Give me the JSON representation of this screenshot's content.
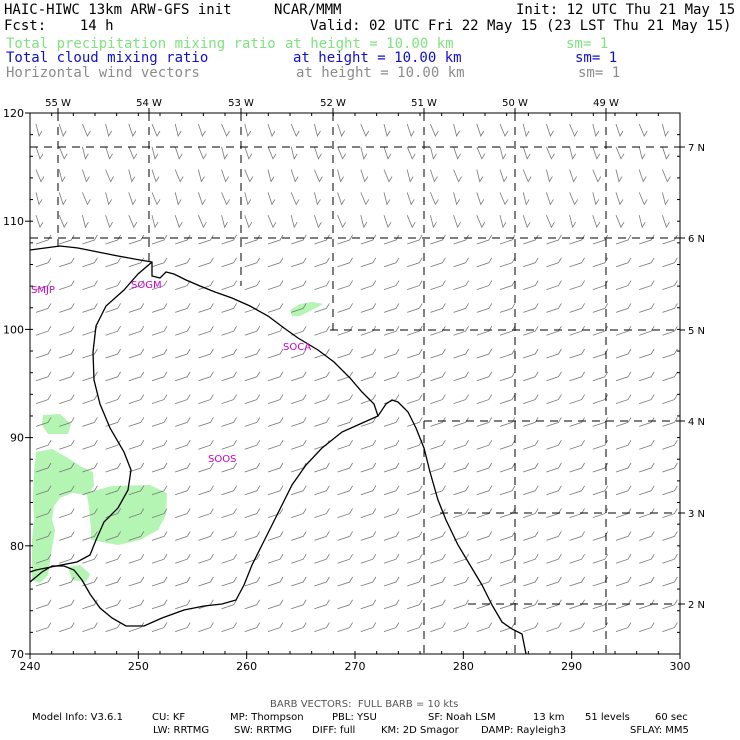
{
  "header": {
    "model": "HAIC-HIWC 13km ARW-GFS init",
    "org": "NCAR/MMM",
    "init": "Init: 12 UTC Thu 21 May 15",
    "fcst": "Fcst:    14 h",
    "valid": "Valid: 02 UTC Fri 22 May 15 (23 LST Thu 21 May 15)"
  },
  "fields": [
    {
      "name": "Total precipitation mixing ratio",
      "height": "at height = 10.00 km",
      "sm": "sm= 1",
      "color": "#7fe37f"
    },
    {
      "name": "Total cloud mixing ratio",
      "height": "at height = 10.00 km",
      "sm": "sm= 1",
      "color": "#1010c8"
    },
    {
      "name": "Horizontal wind vectors",
      "height": "at height = 10.00 km",
      "sm": "sm= 1",
      "color": "#8c8c8c"
    }
  ],
  "footer": {
    "barb": "BARB VECTORS:  FULL BARB = 10 kts",
    "line1": [
      "Model Info: V3.6.1",
      "CU: KF",
      "MP: Thompson",
      "PBL: YSU",
      "SF: Noah LSM",
      "13 km",
      "51 levels",
      "60 sec"
    ],
    "line2": [
      "LW: RRTMG",
      "SW: RRTMG",
      "DIFF: full",
      "KM: 2D Smagor",
      "DAMP: Rayleigh3",
      "SFLAY: MM5"
    ]
  },
  "chart_data": {
    "type": "map",
    "grid_x": {
      "ticks": [
        240,
        250,
        260,
        270,
        280,
        290,
        300
      ],
      "range": [
        240,
        300
      ]
    },
    "grid_y": {
      "ticks": [
        70,
        80,
        90,
        100,
        110,
        120
      ],
      "range": [
        70,
        120
      ]
    },
    "lon_labels": [
      "55 W",
      "54 W",
      "53 W",
      "52 W",
      "51 W",
      "50 W",
      "49 W"
    ],
    "lat_labels": [
      "7 N",
      "6 N",
      "5 N",
      "4 N",
      "3 N",
      "2 N"
    ],
    "stations": [
      "SMJP",
      "SOGM",
      "SOCA",
      "SOOS"
    ],
    "colors": {
      "precip": "#b4f5b4",
      "coast": "#000000",
      "barbs": "#777777",
      "stations": "#cc00cc"
    },
    "grid": "dashed lat/lon lines"
  }
}
